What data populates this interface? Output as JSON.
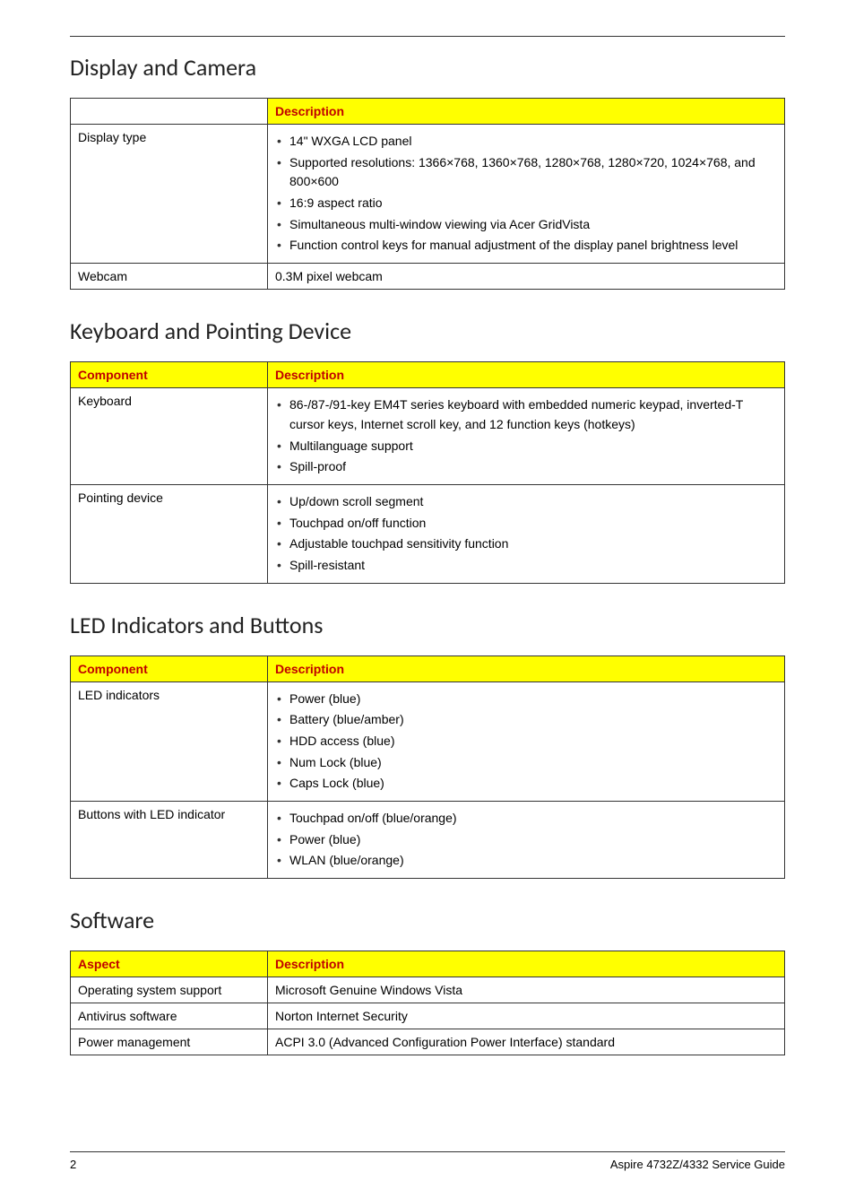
{
  "page": {
    "number": "2",
    "footer_text": "Aspire 4732Z/4332 Service Guide"
  },
  "sections": [
    {
      "heading": "Display and Camera",
      "columns": [
        "",
        "Description"
      ],
      "col0_has_header": false,
      "rows": [
        {
          "label": "Display type",
          "items": [
            "14\" WXGA LCD panel",
            "Supported resolutions: 1366×768, 1360×768, 1280×768, 1280×720, 1024×768, and 800×600",
            "16:9 aspect ratio",
            "Simultaneous multi-window viewing via Acer GridVista",
            "Function control keys for manual adjustment of the display panel brightness level"
          ],
          "is_list": true
        },
        {
          "label": "Webcam",
          "text": "0.3M pixel webcam",
          "is_list": false
        }
      ]
    },
    {
      "heading": "Keyboard and Pointing Device",
      "columns": [
        "Component",
        "Description"
      ],
      "col0_has_header": true,
      "rows": [
        {
          "label": "Keyboard",
          "items": [
            "86-/87-/91-key EM4T series keyboard with embedded numeric keypad, inverted-T cursor keys, Internet scroll key, and 12 function keys (hotkeys)",
            "Multilanguage support",
            "Spill-proof"
          ],
          "is_list": true
        },
        {
          "label": "Pointing device",
          "items": [
            "Up/down scroll segment",
            "Touchpad on/off function",
            "Adjustable touchpad sensitivity function",
            "Spill-resistant"
          ],
          "is_list": true
        }
      ]
    },
    {
      "heading": "LED Indicators and Buttons",
      "columns": [
        "Component",
        "Description"
      ],
      "col0_has_header": true,
      "rows": [
        {
          "label": "LED indicators",
          "items": [
            "Power (blue)",
            "Battery (blue/amber)",
            "HDD access (blue)",
            "Num Lock (blue)",
            "Caps Lock (blue)"
          ],
          "is_list": true
        },
        {
          "label": "Buttons with LED indicator",
          "items": [
            "Touchpad on/off (blue/orange)",
            "Power (blue)",
            "WLAN (blue/orange)"
          ],
          "is_list": true
        }
      ]
    },
    {
      "heading": "Software",
      "columns": [
        "Aspect",
        "Description"
      ],
      "col0_has_header": true,
      "rows": [
        {
          "label": "Operating system support",
          "text": "Microsoft Genuine Windows Vista",
          "is_list": false
        },
        {
          "label": "Antivirus software",
          "text": "Norton Internet Security",
          "is_list": false
        },
        {
          "label": "Power management",
          "text": "ACPI 3.0 (Advanced Configuration Power Interface) standard",
          "is_list": false
        }
      ]
    }
  ]
}
